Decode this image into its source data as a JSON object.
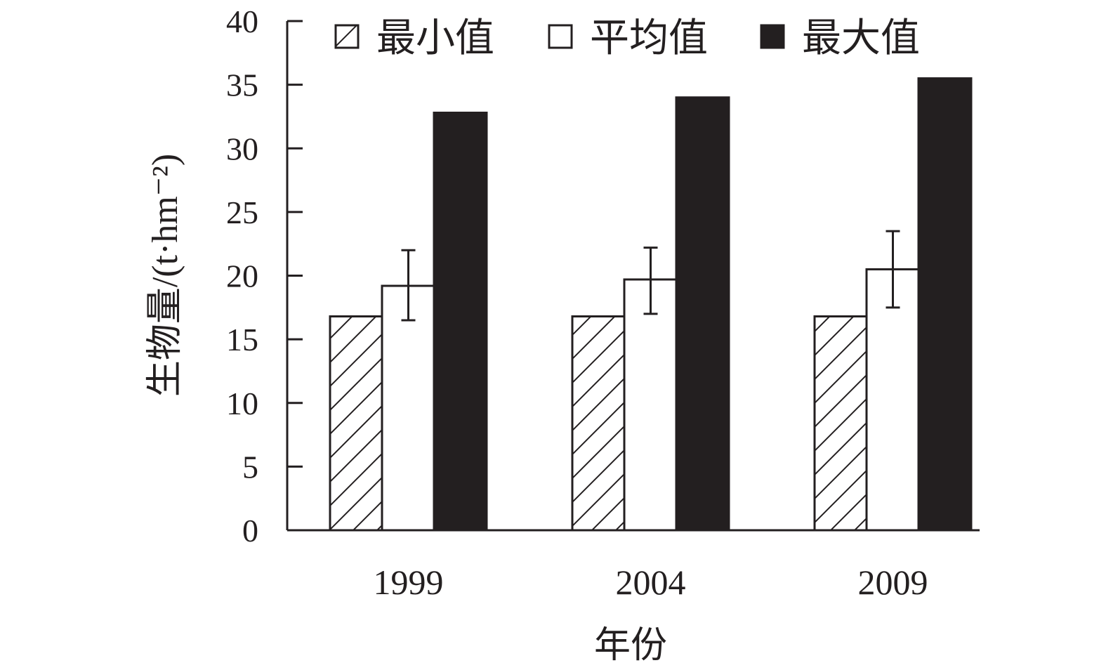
{
  "chart_data": {
    "type": "bar",
    "xlabel": "年份",
    "ylabel": "生物量/(t·hm⁻²)",
    "ylim": [
      0,
      40
    ],
    "yticks": [
      0,
      5,
      10,
      15,
      20,
      25,
      30,
      35,
      40
    ],
    "categories": [
      "1999",
      "2004",
      "2009"
    ],
    "legend_position": "top",
    "grid": false,
    "series": [
      {
        "name": "最小值",
        "values": [
          16.8,
          16.8,
          16.8
        ],
        "style": "hatch",
        "color": "#231f20"
      },
      {
        "name": "平均值",
        "values": [
          19.2,
          19.7,
          20.5
        ],
        "style": "open",
        "color": "#231f20",
        "error_low": [
          16.5,
          17.0,
          17.5
        ],
        "error_high": [
          22.0,
          22.2,
          23.5
        ]
      },
      {
        "name": "最大值",
        "values": [
          32.8,
          34.0,
          35.5
        ],
        "style": "solid",
        "color": "#231f20"
      }
    ]
  }
}
